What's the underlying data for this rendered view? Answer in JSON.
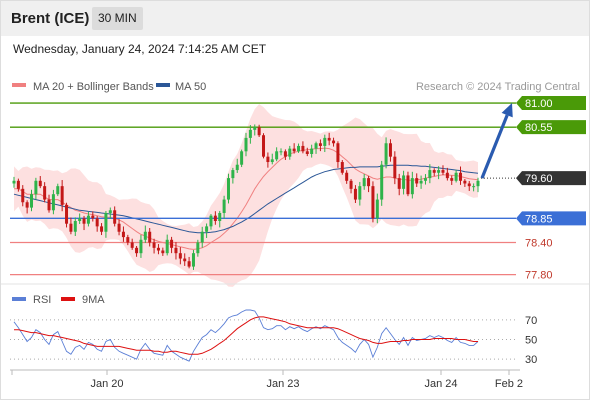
{
  "header": {
    "instrument": "Brent (ICE)",
    "timeframe": "30 MIN"
  },
  "datetime": "Wednesday, January 24, 2024 7:14:25 AM CET",
  "colors": {
    "bb_fill": "#fde0e0",
    "ma20": "#f08080",
    "ma50": "#2b5797",
    "resistance": "#4a9a08",
    "support_blue": "#3b6fd6",
    "support_red": "#f08080",
    "up_candle": "#2fb34a",
    "down_candle": "#c31818",
    "arrow": "#2a5bb0",
    "current_price": "#333333",
    "rsi": "#5b7fd6",
    "rsi_ma": "#dd1111"
  },
  "chart_data": [
    {
      "type": "candlestick",
      "name": "price",
      "legend": [
        {
          "label": "MA 20 + Bollinger Bands",
          "color": "#f08080"
        },
        {
          "label": "MA 50",
          "color": "#2b5797"
        }
      ],
      "credit": "Research © 2024 Trading Central",
      "ylim": [
        77.7,
        81.15
      ],
      "x_ticks": [
        "Jan 20",
        "Jan 23",
        "Jan 24",
        "Feb 2"
      ],
      "levels": [
        {
          "value": 81.0,
          "label": "81.00",
          "kind": "resistance"
        },
        {
          "value": 80.55,
          "label": "80.55",
          "kind": "resistance"
        },
        {
          "value": 79.6,
          "label": "79.60",
          "kind": "current"
        },
        {
          "value": 78.85,
          "label": "78.85",
          "kind": "support_blue"
        },
        {
          "value": 78.4,
          "label": "78.40",
          "kind": "support_red"
        },
        {
          "value": 77.8,
          "label": "77.80",
          "kind": "support_red"
        }
      ],
      "projection": {
        "from": 79.6,
        "to": 81.0
      },
      "close": [
        79.55,
        79.4,
        79.15,
        79.05,
        79.3,
        79.55,
        79.45,
        79.2,
        79.0,
        79.3,
        79.45,
        79.1,
        78.75,
        78.6,
        78.8,
        78.85,
        78.75,
        78.9,
        78.85,
        78.7,
        78.6,
        78.95,
        79.0,
        78.75,
        78.6,
        78.5,
        78.4,
        78.3,
        78.2,
        78.45,
        78.6,
        78.4,
        78.3,
        78.25,
        78.2,
        78.45,
        78.3,
        78.2,
        78.1,
        78.05,
        77.95,
        78.2,
        78.4,
        78.6,
        78.7,
        78.9,
        78.8,
        78.95,
        79.2,
        79.6,
        79.75,
        79.85,
        80.1,
        80.35,
        80.5,
        80.55,
        80.4,
        80.0,
        79.9,
        79.95,
        80.1,
        80.1,
        80.0,
        80.15,
        80.1,
        80.2,
        80.1,
        80.05,
        80.15,
        80.25,
        80.2,
        80.35,
        80.3,
        80.25,
        79.9,
        79.7,
        79.55,
        79.4,
        79.2,
        79.45,
        79.6,
        79.45,
        78.85,
        79.2,
        79.85,
        80.25,
        80.0,
        79.6,
        79.4,
        79.65,
        79.3,
        79.6,
        79.5,
        79.55,
        79.6,
        79.75,
        79.7,
        79.75,
        79.7,
        79.6,
        79.55,
        79.7,
        79.55,
        79.5,
        79.45,
        79.45,
        79.55
      ],
      "ma20": [
        79.4,
        79.4,
        79.35,
        79.3,
        79.3,
        79.3,
        79.3,
        79.25,
        79.2,
        79.2,
        79.2,
        79.15,
        79.1,
        79.05,
        79.0,
        78.98,
        78.95,
        78.93,
        78.92,
        78.9,
        78.88,
        78.87,
        78.87,
        78.85,
        78.82,
        78.78,
        78.72,
        78.66,
        78.6,
        78.55,
        78.52,
        78.48,
        78.45,
        78.42,
        78.4,
        78.38,
        78.36,
        78.34,
        78.32,
        78.3,
        78.28,
        78.27,
        78.28,
        78.3,
        78.34,
        78.4,
        78.45,
        78.5,
        78.57,
        78.65,
        78.75,
        78.85,
        78.97,
        79.1,
        79.25,
        79.4,
        79.52,
        79.63,
        79.72,
        79.8,
        79.88,
        79.95,
        80.0,
        80.05,
        80.08,
        80.1,
        80.12,
        80.13,
        80.14,
        80.15,
        80.15,
        80.16,
        80.15,
        80.12,
        80.07,
        80.0,
        79.93,
        79.85,
        79.77,
        79.72,
        79.68,
        79.64,
        79.6,
        79.58,
        79.6,
        79.62,
        79.62,
        79.6,
        79.58,
        79.58,
        79.56,
        79.56,
        79.57,
        79.58,
        79.6,
        79.62,
        79.63,
        79.65,
        79.66,
        79.66,
        79.65,
        79.65,
        79.63,
        79.61,
        79.59,
        79.58,
        79.57
      ],
      "ma50": [
        79.3,
        79.28,
        79.26,
        79.24,
        79.22,
        79.2,
        79.18,
        79.16,
        79.14,
        79.12,
        79.1,
        79.08,
        79.06,
        79.04,
        79.02,
        79.0,
        78.99,
        78.98,
        78.97,
        78.96,
        78.95,
        78.94,
        78.93,
        78.92,
        78.91,
        78.9,
        78.88,
        78.86,
        78.84,
        78.82,
        78.8,
        78.78,
        78.76,
        78.74,
        78.72,
        78.7,
        78.68,
        78.66,
        78.64,
        78.62,
        78.6,
        78.59,
        78.58,
        78.58,
        78.58,
        78.59,
        78.6,
        78.62,
        78.64,
        78.67,
        78.7,
        78.74,
        78.78,
        78.83,
        78.88,
        78.94,
        79.0,
        79.06,
        79.12,
        79.17,
        79.22,
        79.27,
        79.32,
        79.37,
        79.42,
        79.47,
        79.52,
        79.57,
        79.62,
        79.66,
        79.69,
        79.72,
        79.74,
        79.76,
        79.77,
        79.78,
        79.79,
        79.8,
        79.8,
        79.81,
        79.81,
        79.81,
        79.81,
        79.81,
        79.82,
        79.83,
        79.84,
        79.84,
        79.84,
        79.84,
        79.84,
        79.83,
        79.83,
        79.82,
        79.82,
        79.81,
        79.8,
        79.79,
        79.78,
        79.77,
        79.76,
        79.75,
        79.74,
        79.72,
        79.71,
        79.7,
        79.69
      ]
    },
    {
      "type": "line",
      "name": "rsi",
      "legend": [
        {
          "label": "RSI",
          "color": "#5b7fd6"
        },
        {
          "label": "9MA",
          "color": "#dd1111"
        }
      ],
      "ylim": [
        20,
        80
      ],
      "levels": [
        70,
        50,
        30
      ],
      "level_labels": [
        "70",
        "50",
        "30"
      ],
      "rsi": [
        68,
        62,
        55,
        48,
        52,
        60,
        57,
        50,
        45,
        55,
        58,
        48,
        38,
        35,
        42,
        44,
        40,
        47,
        45,
        40,
        38,
        48,
        50,
        42,
        38,
        36,
        34,
        32,
        30,
        40,
        46,
        40,
        36,
        35,
        34,
        44,
        38,
        35,
        32,
        30,
        28,
        38,
        45,
        52,
        55,
        60,
        57,
        61,
        66,
        72,
        74,
        75,
        78,
        80,
        80,
        79,
        72,
        62,
        60,
        61,
        64,
        64,
        60,
        63,
        61,
        63,
        60,
        58,
        61,
        63,
        61,
        64,
        62,
        60,
        52,
        47,
        44,
        41,
        37,
        45,
        50,
        45,
        32,
        42,
        56,
        62,
        56,
        50,
        45,
        52,
        44,
        52,
        49,
        50,
        51,
        54,
        52,
        54,
        52,
        49,
        47,
        52,
        47,
        46,
        44,
        44,
        48
      ],
      "rsi_ma": [
        60,
        60,
        59,
        58,
        57,
        57,
        56,
        55,
        54,
        54,
        53,
        52,
        51,
        50,
        49,
        48,
        46,
        45,
        44,
        43,
        43,
        43,
        43,
        43,
        43,
        42,
        41,
        40,
        39,
        39,
        39,
        39,
        38,
        38,
        37,
        37,
        38,
        38,
        37,
        36,
        35,
        35,
        35,
        36,
        38,
        40,
        43,
        46,
        49,
        53,
        57,
        61,
        64,
        67,
        70,
        72,
        73,
        73,
        72,
        71,
        70,
        69,
        68,
        66,
        65,
        64,
        63,
        62,
        62,
        62,
        62,
        62,
        62,
        62,
        61,
        59,
        57,
        55,
        53,
        51,
        50,
        49,
        47,
        46,
        46,
        47,
        48,
        48,
        48,
        49,
        49,
        50,
        50,
        50,
        50,
        50,
        51,
        51,
        51,
        51,
        51,
        50,
        50,
        50,
        49,
        48,
        48
      ]
    }
  ]
}
